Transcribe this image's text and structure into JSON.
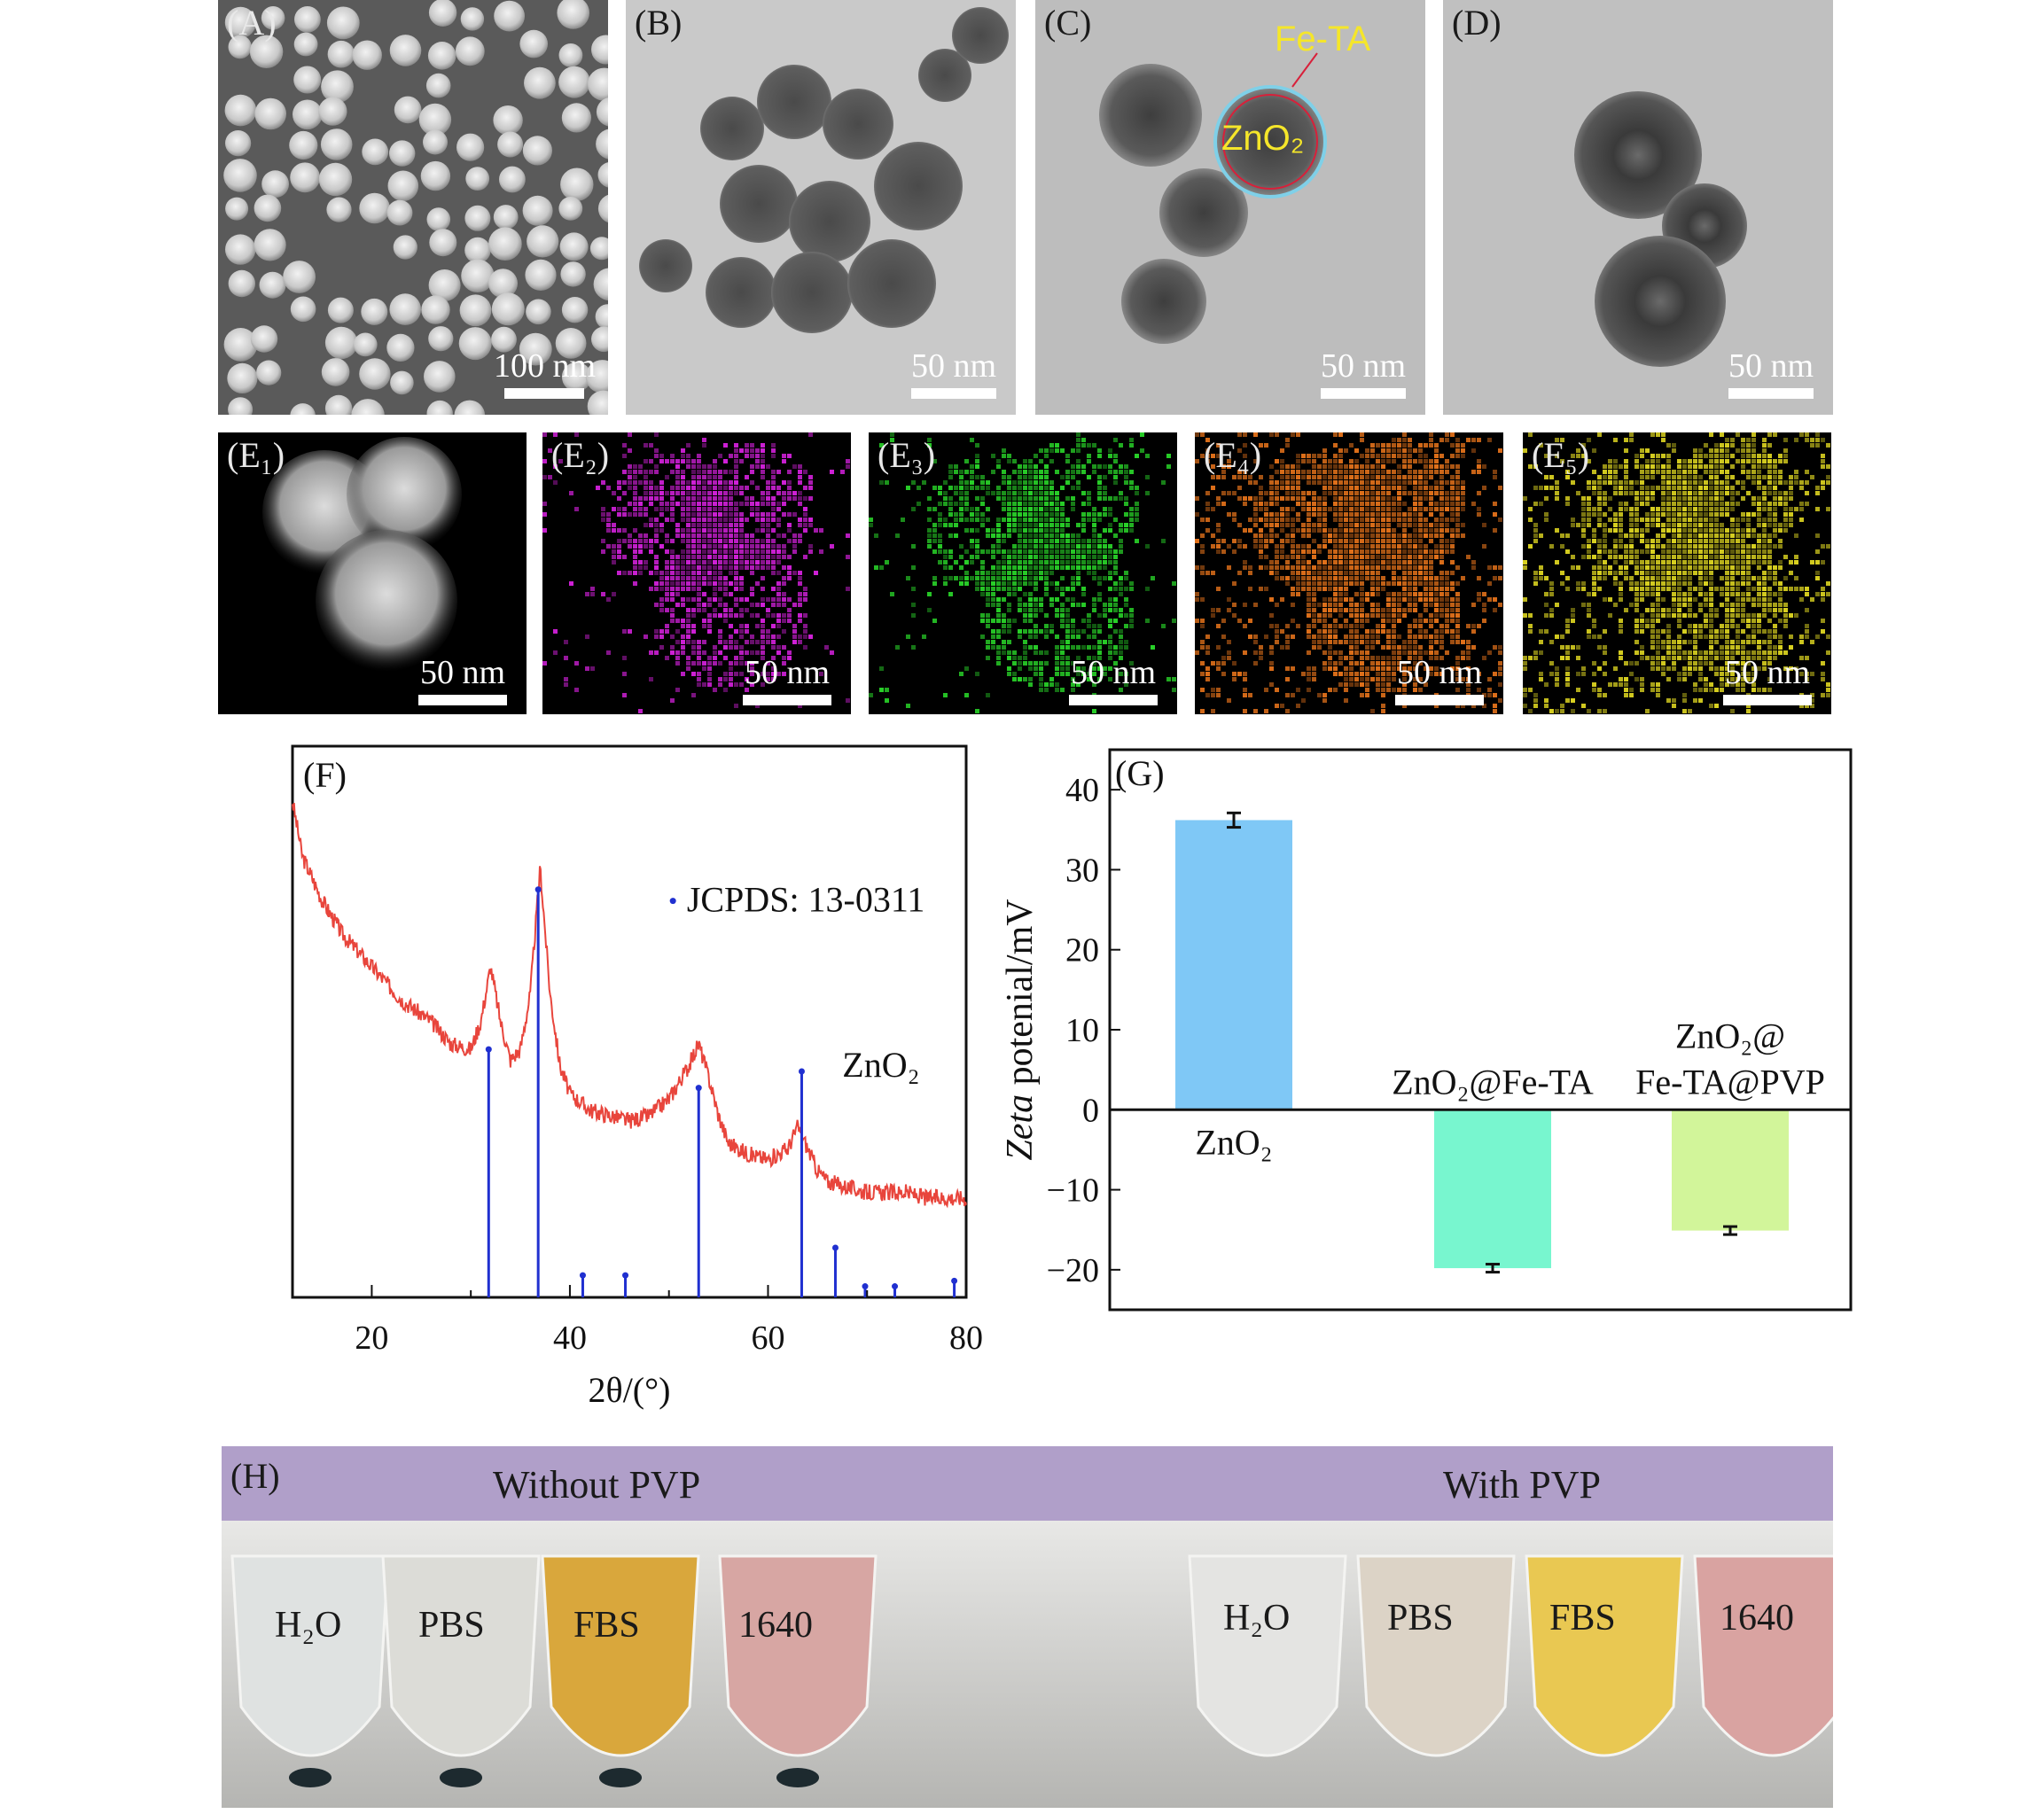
{
  "panels_top": {
    "A": {
      "label": "(A)",
      "scale": "100 nm"
    },
    "B": {
      "label": "(B)",
      "scale": "50 nm"
    },
    "C": {
      "label": "(C)",
      "scale": "50 nm",
      "ann_shell": "Fe-TA",
      "ann_core": "ZnO₂"
    },
    "D": {
      "label": "(D)",
      "scale": "50 nm"
    }
  },
  "panels_map": [
    {
      "label": "(E₁)",
      "scale": "50 nm",
      "color": "#d8d8d8"
    },
    {
      "label": "(E₂)",
      "scale": "50 nm",
      "color": "#d020d8"
    },
    {
      "label": "(E₃)",
      "scale": "50 nm",
      "color": "#28d028"
    },
    {
      "label": "(E₄)",
      "scale": "50 nm",
      "color": "#e0701a"
    },
    {
      "label": "(E₅)",
      "scale": "50 nm",
      "color": "#d8d020"
    }
  ],
  "chart_data": [
    {
      "type": "line",
      "panel_label": "(F)",
      "xlabel": "2θ/(°)",
      "xlim": [
        12,
        80
      ],
      "xticks": [
        20,
        40,
        60,
        80
      ],
      "series": [
        {
          "name": "ZnO₂",
          "color": "#e8453c",
          "x": [
            12,
            13,
            15,
            17,
            20,
            23,
            26,
            28,
            30,
            31,
            32,
            33,
            34,
            35,
            36,
            37,
            38,
            39,
            40,
            42,
            44,
            46,
            48,
            50,
            52,
            53,
            54,
            55,
            56,
            58,
            60,
            62,
            63,
            64,
            65,
            66,
            68,
            70,
            72,
            74,
            76,
            78,
            80
          ],
          "y": [
            0.9,
            0.8,
            0.72,
            0.66,
            0.6,
            0.54,
            0.5,
            0.46,
            0.45,
            0.5,
            0.6,
            0.5,
            0.43,
            0.45,
            0.55,
            0.78,
            0.55,
            0.42,
            0.37,
            0.34,
            0.33,
            0.32,
            0.33,
            0.36,
            0.42,
            0.46,
            0.4,
            0.33,
            0.28,
            0.26,
            0.25,
            0.27,
            0.31,
            0.27,
            0.23,
            0.21,
            0.2,
            0.19,
            0.19,
            0.19,
            0.18,
            0.18,
            0.18
          ]
        }
      ],
      "reference": {
        "name": "JCPDS: 13-0311",
        "color": "#2030d0",
        "x": [
          31.8,
          36.8,
          41.3,
          45.6,
          53.0,
          63.4,
          66.8,
          69.8,
          72.8,
          78.8
        ],
        "h": [
          0.45,
          0.74,
          0.04,
          0.04,
          0.38,
          0.41,
          0.09,
          0.02,
          0.02,
          0.03
        ]
      }
    },
    {
      "type": "bar",
      "panel_label": "(G)",
      "ylabel_italic": "Zeta",
      "ylabel_rest": " potenial/mV",
      "ylim": [
        -25,
        45
      ],
      "yticks": [
        -20,
        -10,
        0,
        10,
        20,
        30,
        40
      ],
      "categories": [
        "ZnO₂",
        "ZnO₂@Fe-TA",
        "ZnO₂@ Fe-TA@PVP"
      ],
      "values": [
        36.2,
        -19.8,
        -15.1
      ],
      "errors": [
        0.9,
        0.5,
        0.5
      ],
      "colors": [
        "#7fc8f6",
        "#78f6cf",
        "#d2f59a"
      ]
    }
  ],
  "panel_H": {
    "label": "(H)",
    "group_left": "Without PVP",
    "group_right": "With PVP",
    "tubes_left": [
      "H₂O",
      "PBS",
      "FBS",
      "1640"
    ],
    "tubes_right": [
      "H₂O",
      "PBS",
      "FBS",
      "1640"
    ]
  }
}
